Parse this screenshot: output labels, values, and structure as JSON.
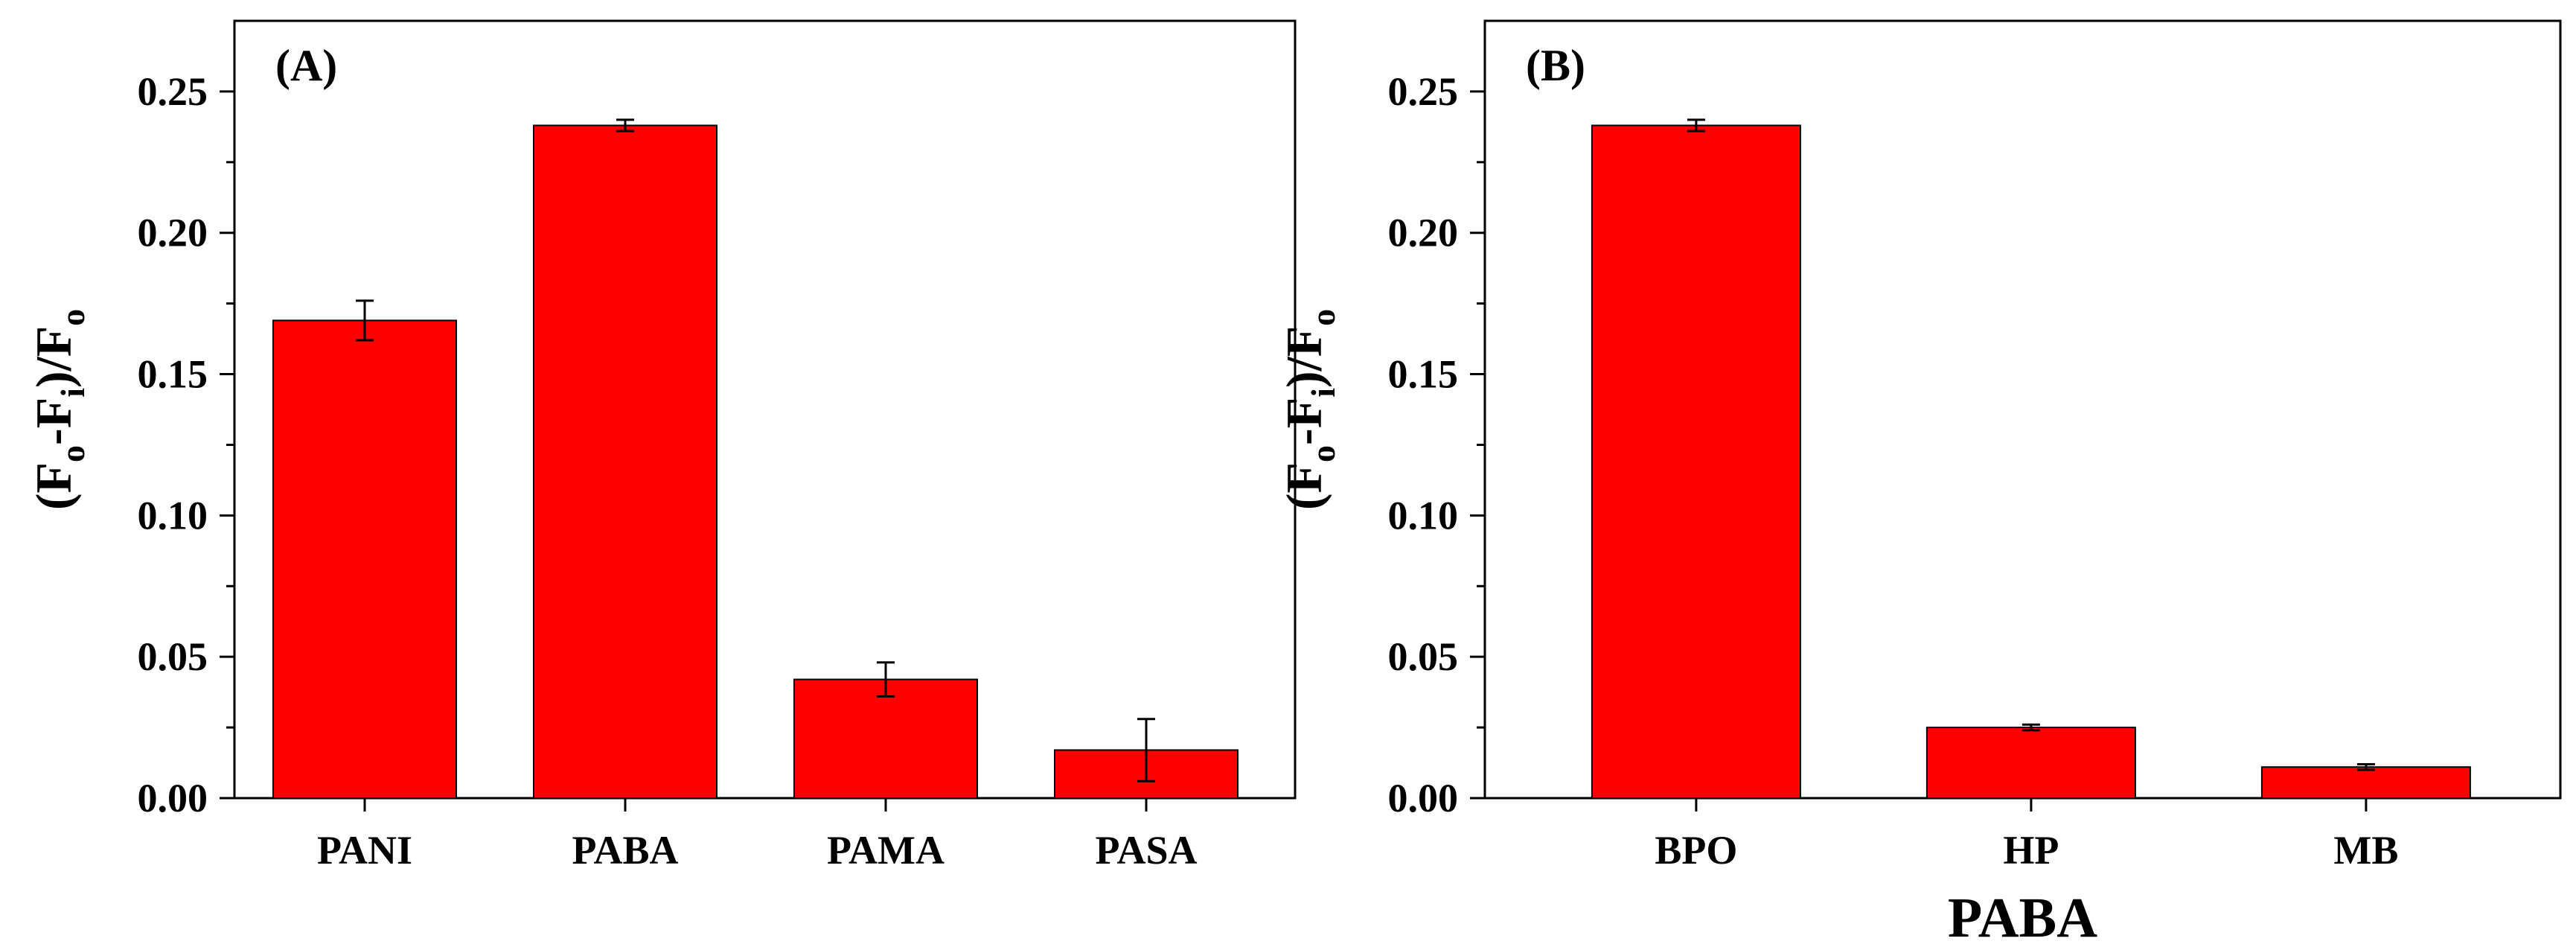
{
  "chart_data": [
    {
      "type": "bar",
      "panel_label": "(A)",
      "categories": [
        "PANI",
        "PABA",
        "PAMA",
        "PASA"
      ],
      "values": [
        0.169,
        0.238,
        0.042,
        0.017
      ],
      "errors": [
        0.007,
        0.002,
        0.006,
        0.011
      ],
      "ylabel": {
        "open": "(F",
        "o1": "o",
        "minus": "-F",
        "i": "i",
        "close": ")/F",
        "o2": "o"
      },
      "xlabel": "",
      "ylim": [
        0,
        0.275
      ],
      "yticks": [
        0.0,
        0.05,
        0.1,
        0.15,
        0.2,
        0.25
      ],
      "ytick_labels": [
        "0.00",
        "0.05",
        "0.10",
        "0.15",
        "0.20",
        "0.25"
      ],
      "bar_color": "#ff0000"
    },
    {
      "type": "bar",
      "panel_label": "(B)",
      "categories": [
        "BPO",
        "HP",
        "MB"
      ],
      "values": [
        0.238,
        0.025,
        0.011
      ],
      "errors": [
        0.002,
        0.001,
        0.001
      ],
      "ylabel": {
        "open": "(F",
        "o1": "o",
        "minus": "-F",
        "i": "i",
        "close": ")/F",
        "o2": "o"
      },
      "xlabel": "PABA",
      "ylim": [
        0,
        0.275
      ],
      "yticks": [
        0.0,
        0.05,
        0.1,
        0.15,
        0.2,
        0.25
      ],
      "ytick_labels": [
        "0.00",
        "0.05",
        "0.10",
        "0.15",
        "0.20",
        "0.25"
      ],
      "bar_color": "#ff0000"
    }
  ]
}
